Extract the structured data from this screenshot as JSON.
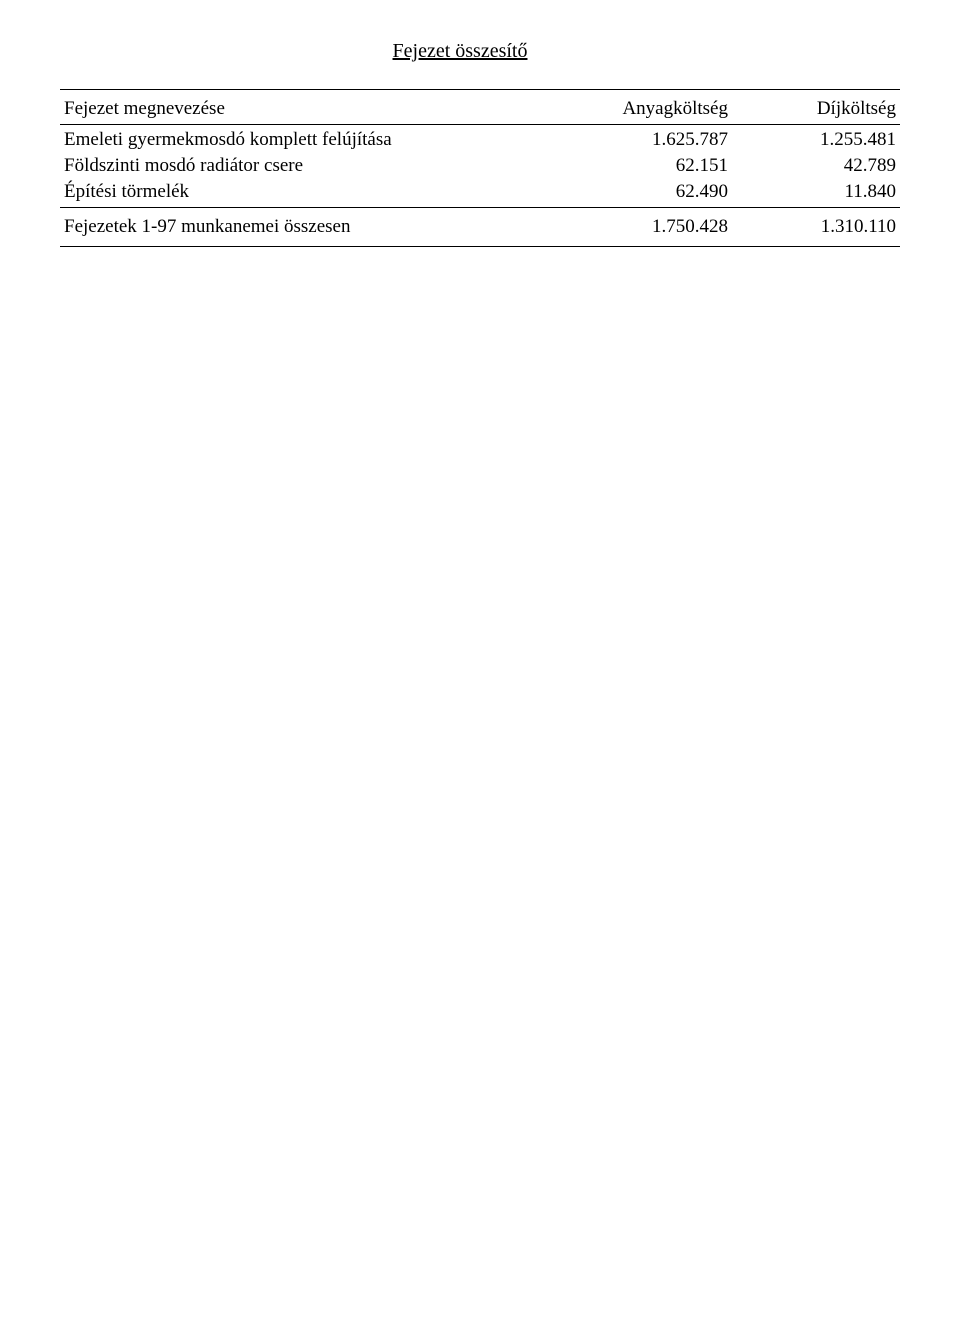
{
  "title": "Fejezet összesítő",
  "headers": {
    "name": "Fejezet megnevezése",
    "anyag": "Anyagköltség",
    "dij": "Díjköltség"
  },
  "rows": [
    {
      "name": "Emeleti gyermekmosdó komplett felújítása",
      "anyag": "1.625.787",
      "dij": "1.255.481"
    },
    {
      "name": "Földszinti mosdó radiátor csere",
      "anyag": "62.151",
      "dij": "42.789"
    },
    {
      "name": "Építési törmelék",
      "anyag": "62.490",
      "dij": "11.840"
    }
  ],
  "total": {
    "name": "Fejezetek 1-97 munkanemei összesen",
    "anyag": "1.750.428",
    "dij": "1.310.110"
  }
}
